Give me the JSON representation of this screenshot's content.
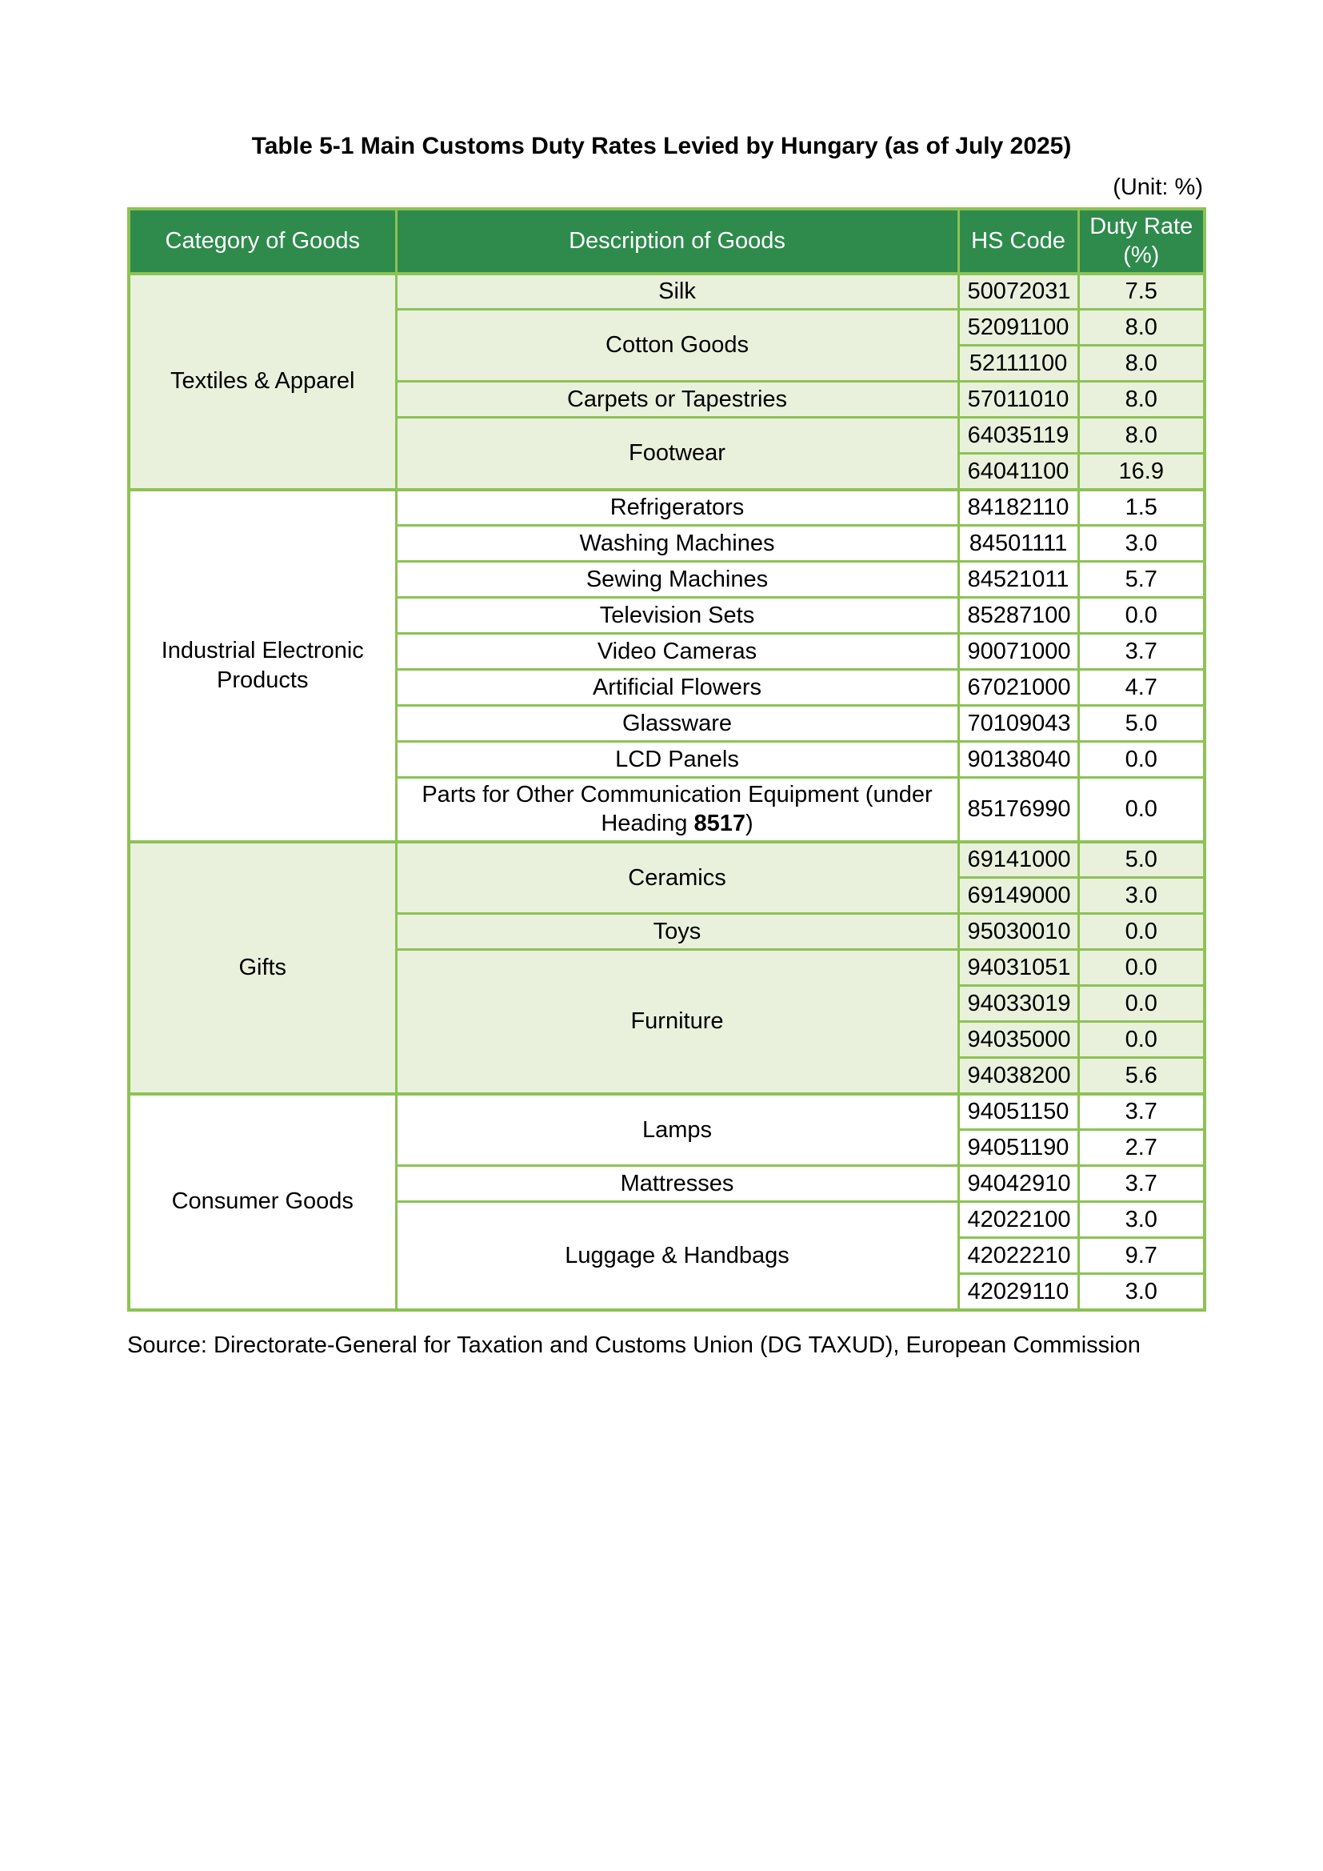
{
  "page": {
    "title": "Table 5-1 Main Customs Duty Rates Levied by Hungary (as of July 2025)",
    "unit_note": "(Unit: %)",
    "source": "Source: Directorate-General for Taxation and Customs Union (DG TAXUD), European Commission"
  },
  "colors": {
    "header_bg": "#2E8B4C",
    "header_text": "#FFFFFF",
    "border": "#8DC254",
    "light_bg": "#E9F1DD",
    "white_bg": "#FFFFFF",
    "text": "#000000"
  },
  "table": {
    "headers": {
      "category": "Category of Goods",
      "description": "Description of Goods",
      "hs_code": "HS Code",
      "duty_rate": "Duty Rate (%)"
    },
    "sections": [
      {
        "category": "Textiles & Apparel",
        "groups": [
          {
            "desc": "Silk",
            "items": [
              {
                "hs": "50072031",
                "rate": "7.5"
              }
            ]
          },
          {
            "desc": "Cotton Goods",
            "items": [
              {
                "hs": "52091100",
                "rate": "8.0"
              },
              {
                "hs": "52111100",
                "rate": "8.0"
              }
            ]
          },
          {
            "desc": "Carpets or Tapestries",
            "items": [
              {
                "hs": "57011010",
                "rate": "8.0"
              }
            ]
          },
          {
            "desc": "Footwear",
            "items": [
              {
                "hs": "64035119",
                "rate": "8.0"
              },
              {
                "hs": "64041100",
                "rate": "16.9"
              }
            ]
          }
        ]
      },
      {
        "category": "Industrial Electronic Products",
        "groups": [
          {
            "desc": "Refrigerators",
            "items": [
              {
                "hs": "84182110",
                "rate": "1.5"
              }
            ]
          },
          {
            "desc": "Washing Machines",
            "items": [
              {
                "hs": "84501111",
                "rate": "3.0"
              }
            ]
          },
          {
            "desc": "Sewing Machines",
            "items": [
              {
                "hs": "84521011",
                "rate": "5.7"
              }
            ]
          },
          {
            "desc": "Television Sets",
            "items": [
              {
                "hs": "85287100",
                "rate": "0.0"
              }
            ]
          },
          {
            "desc": "Video Cameras",
            "items": [
              {
                "hs": "90071000",
                "rate": "3.7"
              }
            ]
          },
          {
            "desc": "Artificial Flowers",
            "items": [
              {
                "hs": "67021000",
                "rate": "4.7"
              }
            ]
          },
          {
            "desc": "Glassware",
            "items": [
              {
                "hs": "70109043",
                "rate": "5.0"
              }
            ]
          },
          {
            "desc": "LCD Panels",
            "items": [
              {
                "hs": "90138040",
                "rate": "0.0"
              }
            ]
          },
          {
            "desc_parts": {
              "prefix": "Parts for Other Communication Equipment (under Heading ",
              "bold": "8517",
              "suffix": ")"
            },
            "items": [
              {
                "hs": "85176990",
                "rate": "0.0"
              }
            ]
          }
        ]
      },
      {
        "category": "Gifts",
        "groups": [
          {
            "desc": "Ceramics",
            "items": [
              {
                "hs": "69141000",
                "rate": "5.0"
              },
              {
                "hs": "69149000",
                "rate": "3.0"
              }
            ]
          },
          {
            "desc": "Toys",
            "items": [
              {
                "hs": "95030010",
                "rate": "0.0"
              }
            ]
          },
          {
            "desc": "Furniture",
            "items": [
              {
                "hs": "94031051",
                "rate": "0.0"
              },
              {
                "hs": "94033019",
                "rate": "0.0"
              },
              {
                "hs": "94035000",
                "rate": "0.0"
              },
              {
                "hs": "94038200",
                "rate": "5.6"
              }
            ]
          }
        ]
      },
      {
        "category": "Consumer Goods",
        "groups": [
          {
            "desc": "Lamps",
            "items": [
              {
                "hs": "94051150",
                "rate": "3.7"
              },
              {
                "hs": "94051190",
                "rate": "2.7"
              }
            ]
          },
          {
            "desc": "Mattresses",
            "items": [
              {
                "hs": "94042910",
                "rate": "3.7"
              }
            ]
          },
          {
            "desc": "Luggage & Handbags",
            "items": [
              {
                "hs": "42022100",
                "rate": "3.0"
              },
              {
                "hs": "42022210",
                "rate": "9.7"
              },
              {
                "hs": "42029110",
                "rate": "3.0"
              }
            ]
          }
        ]
      }
    ]
  }
}
